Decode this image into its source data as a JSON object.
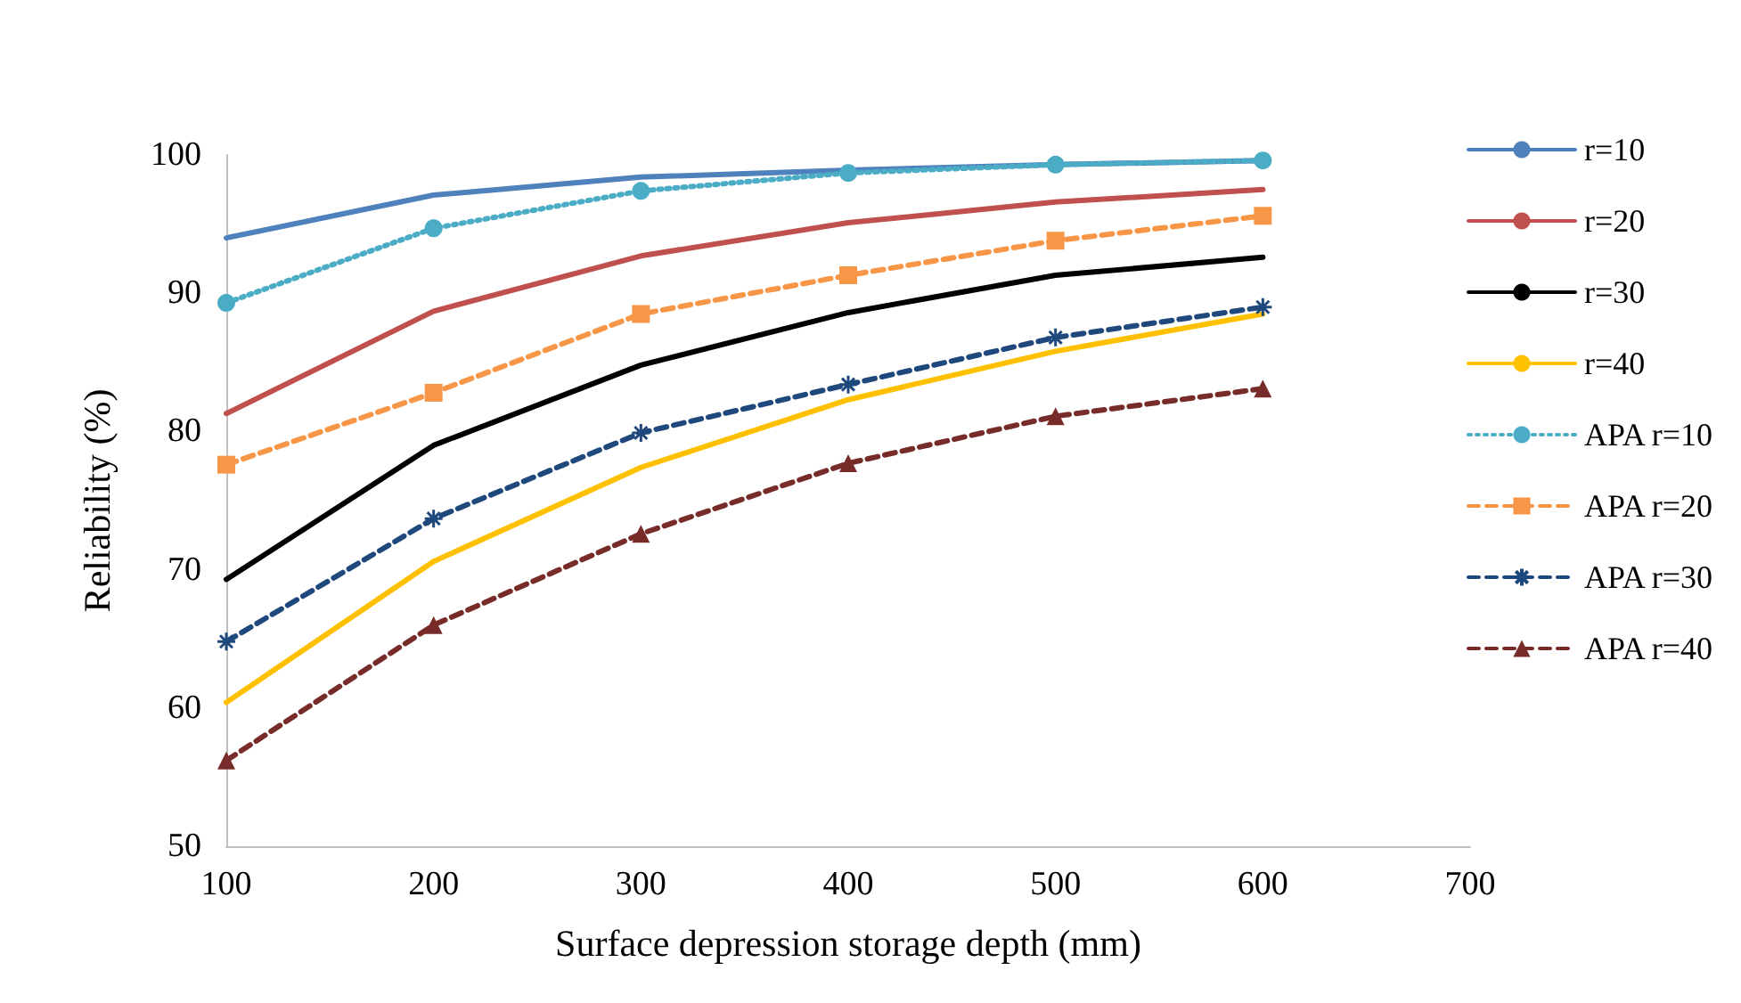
{
  "chart_data": {
    "type": "line",
    "xlabel": "Surface depression storage depth (mm)",
    "ylabel": "Reliability (%)",
    "x": [
      100,
      200,
      300,
      400,
      500,
      600
    ],
    "xlim": [
      100,
      700
    ],
    "xticks": [
      100,
      200,
      300,
      400,
      500,
      600,
      700
    ],
    "ylim": [
      50,
      100
    ],
    "yticks": [
      50,
      60,
      70,
      80,
      90,
      100
    ],
    "grid": false,
    "legend": "right",
    "series": [
      {
        "name": "r=10",
        "color": "#4f81bd",
        "marker": "none",
        "line_style": "solid",
        "values": [
          94.0,
          97.1,
          98.4,
          98.9,
          99.3,
          99.6
        ]
      },
      {
        "name": "r=20",
        "color": "#c0504d",
        "marker": "none",
        "line_style": "solid",
        "values": [
          81.3,
          88.7,
          92.7,
          95.1,
          96.6,
          97.5
        ]
      },
      {
        "name": "r=30",
        "color": "#000000",
        "marker": "none",
        "line_style": "solid",
        "values": [
          69.3,
          79.0,
          84.8,
          88.6,
          91.3,
          92.6
        ]
      },
      {
        "name": "r=40",
        "color": "#ffc000",
        "marker": "none",
        "line_style": "solid",
        "values": [
          60.4,
          70.6,
          77.4,
          82.3,
          85.8,
          88.5
        ]
      },
      {
        "name": "APA r=10",
        "color": "#4bacc6",
        "marker": "circle",
        "line_style": "dotted",
        "values": [
          89.3,
          94.7,
          97.4,
          98.7,
          99.3,
          99.6
        ]
      },
      {
        "name": "APA r=20",
        "color": "#f79646",
        "marker": "square",
        "line_style": "dashed",
        "values": [
          77.6,
          82.8,
          88.5,
          91.3,
          93.8,
          95.6
        ]
      },
      {
        "name": "APA r=30",
        "color": "#1f497d",
        "marker": "cross",
        "line_style": "dashed",
        "values": [
          64.8,
          73.7,
          79.9,
          83.4,
          86.8,
          89.0
        ]
      },
      {
        "name": "APA r=40",
        "color": "#772c2a",
        "marker": "triangle",
        "line_style": "dashed",
        "values": [
          56.2,
          66.0,
          72.6,
          77.7,
          81.1,
          83.1
        ]
      }
    ]
  }
}
